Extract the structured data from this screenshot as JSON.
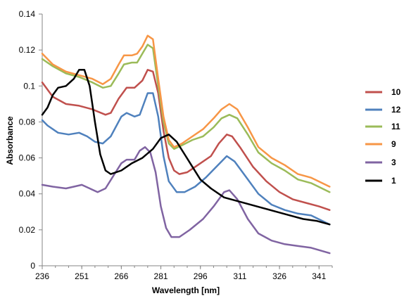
{
  "chart_data": {
    "type": "line",
    "xlabel": "Wavelength [nm]",
    "ylabel": "Absorbance",
    "xlim": [
      236,
      346
    ],
    "ylim": [
      0,
      0.14
    ],
    "x_ticks": [
      236,
      251,
      266,
      281,
      296,
      311,
      326,
      341
    ],
    "y_ticks": [
      0,
      0.02,
      0.04,
      0.06,
      0.08,
      0.1,
      0.12,
      0.14
    ],
    "y_tick_labels": [
      "0",
      "0.02",
      "0.04",
      "0.06",
      "0.08",
      "0.1",
      "0.12",
      "0.14"
    ],
    "grid": false,
    "legend_position": "right",
    "series": [
      {
        "name": "10",
        "color": "#c0504d",
        "points": [
          [
            236,
            0.102
          ],
          [
            240,
            0.094
          ],
          [
            245,
            0.09
          ],
          [
            250,
            0.089
          ],
          [
            255,
            0.087
          ],
          [
            260,
            0.084
          ],
          [
            262,
            0.085
          ],
          [
            265,
            0.093
          ],
          [
            268,
            0.099
          ],
          [
            271,
            0.099
          ],
          [
            274,
            0.103
          ],
          [
            276,
            0.109
          ],
          [
            278,
            0.108
          ],
          [
            280,
            0.096
          ],
          [
            282,
            0.075
          ],
          [
            284,
            0.06
          ],
          [
            286,
            0.053
          ],
          [
            288,
            0.051
          ],
          [
            291,
            0.052
          ],
          [
            295,
            0.056
          ],
          [
            300,
            0.061
          ],
          [
            303,
            0.068
          ],
          [
            306,
            0.073
          ],
          [
            308,
            0.072
          ],
          [
            311,
            0.066
          ],
          [
            316,
            0.055
          ],
          [
            321,
            0.047
          ],
          [
            326,
            0.041
          ],
          [
            331,
            0.037
          ],
          [
            336,
            0.035
          ],
          [
            341,
            0.033
          ],
          [
            345,
            0.031
          ]
        ]
      },
      {
        "name": "12",
        "color": "#4f81bd",
        "points": [
          [
            236,
            0.081
          ],
          [
            238,
            0.078
          ],
          [
            242,
            0.074
          ],
          [
            246,
            0.073
          ],
          [
            250,
            0.074
          ],
          [
            253,
            0.072
          ],
          [
            256,
            0.069
          ],
          [
            259,
            0.068
          ],
          [
            262,
            0.072
          ],
          [
            266,
            0.083
          ],
          [
            268,
            0.085
          ],
          [
            271,
            0.083
          ],
          [
            273,
            0.084
          ],
          [
            276,
            0.096
          ],
          [
            278,
            0.096
          ],
          [
            280,
            0.083
          ],
          [
            282,
            0.061
          ],
          [
            284,
            0.047
          ],
          [
            287,
            0.041
          ],
          [
            290,
            0.041
          ],
          [
            294,
            0.044
          ],
          [
            298,
            0.049
          ],
          [
            302,
            0.055
          ],
          [
            306,
            0.061
          ],
          [
            309,
            0.058
          ],
          [
            313,
            0.05
          ],
          [
            318,
            0.04
          ],
          [
            323,
            0.034
          ],
          [
            328,
            0.031
          ],
          [
            333,
            0.029
          ],
          [
            338,
            0.028
          ],
          [
            345,
            0.023
          ]
        ]
      },
      {
        "name": "11",
        "color": "#9bbb59",
        "points": [
          [
            236,
            0.115
          ],
          [
            240,
            0.111
          ],
          [
            245,
            0.107
          ],
          [
            250,
            0.105
          ],
          [
            255,
            0.102
          ],
          [
            259,
            0.099
          ],
          [
            262,
            0.1
          ],
          [
            265,
            0.107
          ],
          [
            267,
            0.112
          ],
          [
            270,
            0.113
          ],
          [
            272,
            0.113
          ],
          [
            274,
            0.118
          ],
          [
            276,
            0.123
          ],
          [
            278,
            0.121
          ],
          [
            280,
            0.1
          ],
          [
            282,
            0.08
          ],
          [
            284,
            0.068
          ],
          [
            286,
            0.065
          ],
          [
            289,
            0.067
          ],
          [
            293,
            0.07
          ],
          [
            297,
            0.072
          ],
          [
            301,
            0.077
          ],
          [
            304,
            0.082
          ],
          [
            307,
            0.084
          ],
          [
            310,
            0.082
          ],
          [
            314,
            0.073
          ],
          [
            318,
            0.063
          ],
          [
            323,
            0.057
          ],
          [
            328,
            0.053
          ],
          [
            333,
            0.048
          ],
          [
            338,
            0.046
          ],
          [
            345,
            0.041
          ]
        ]
      },
      {
        "name": "9",
        "color": "#f79646",
        "points": [
          [
            236,
            0.118
          ],
          [
            240,
            0.112
          ],
          [
            245,
            0.108
          ],
          [
            250,
            0.106
          ],
          [
            255,
            0.104
          ],
          [
            259,
            0.101
          ],
          [
            262,
            0.104
          ],
          [
            265,
            0.112
          ],
          [
            267,
            0.117
          ],
          [
            270,
            0.117
          ],
          [
            272,
            0.118
          ],
          [
            274,
            0.122
          ],
          [
            276,
            0.128
          ],
          [
            278,
            0.126
          ],
          [
            280,
            0.104
          ],
          [
            282,
            0.083
          ],
          [
            284,
            0.07
          ],
          [
            286,
            0.066
          ],
          [
            289,
            0.068
          ],
          [
            293,
            0.072
          ],
          [
            297,
            0.076
          ],
          [
            301,
            0.082
          ],
          [
            304,
            0.087
          ],
          [
            307,
            0.09
          ],
          [
            310,
            0.087
          ],
          [
            314,
            0.077
          ],
          [
            318,
            0.066
          ],
          [
            323,
            0.06
          ],
          [
            328,
            0.056
          ],
          [
            333,
            0.051
          ],
          [
            338,
            0.049
          ],
          [
            345,
            0.044
          ]
        ]
      },
      {
        "name": "3",
        "color": "#8064a2",
        "points": [
          [
            236,
            0.045
          ],
          [
            240,
            0.044
          ],
          [
            245,
            0.043
          ],
          [
            248,
            0.044
          ],
          [
            251,
            0.045
          ],
          [
            254,
            0.043
          ],
          [
            257,
            0.041
          ],
          [
            260,
            0.043
          ],
          [
            263,
            0.05
          ],
          [
            266,
            0.057
          ],
          [
            268,
            0.059
          ],
          [
            271,
            0.059
          ],
          [
            273,
            0.064
          ],
          [
            275,
            0.066
          ],
          [
            277,
            0.063
          ],
          [
            279,
            0.052
          ],
          [
            281,
            0.033
          ],
          [
            283,
            0.021
          ],
          [
            285,
            0.016
          ],
          [
            288,
            0.016
          ],
          [
            292,
            0.02
          ],
          [
            297,
            0.026
          ],
          [
            301,
            0.033
          ],
          [
            305,
            0.041
          ],
          [
            307,
            0.042
          ],
          [
            310,
            0.037
          ],
          [
            314,
            0.026
          ],
          [
            318,
            0.018
          ],
          [
            323,
            0.014
          ],
          [
            328,
            0.012
          ],
          [
            333,
            0.011
          ],
          [
            338,
            0.01
          ],
          [
            345,
            0.007
          ]
        ]
      },
      {
        "name": "1",
        "color": "#000000",
        "points": [
          [
            236,
            0.084
          ],
          [
            238,
            0.088
          ],
          [
            240,
            0.095
          ],
          [
            242,
            0.099
          ],
          [
            245,
            0.1
          ],
          [
            248,
            0.104
          ],
          [
            250,
            0.109
          ],
          [
            252,
            0.109
          ],
          [
            254,
            0.1
          ],
          [
            256,
            0.08
          ],
          [
            258,
            0.062
          ],
          [
            260,
            0.053
          ],
          [
            262,
            0.051
          ],
          [
            266,
            0.053
          ],
          [
            270,
            0.057
          ],
          [
            274,
            0.06
          ],
          [
            278,
            0.065
          ],
          [
            281,
            0.071
          ],
          [
            284,
            0.073
          ],
          [
            287,
            0.069
          ],
          [
            290,
            0.062
          ],
          [
            293,
            0.055
          ],
          [
            296,
            0.048
          ],
          [
            300,
            0.043
          ],
          [
            305,
            0.038
          ],
          [
            310,
            0.036
          ],
          [
            315,
            0.034
          ],
          [
            320,
            0.032
          ],
          [
            325,
            0.03
          ],
          [
            330,
            0.028
          ],
          [
            335,
            0.026
          ],
          [
            340,
            0.025
          ],
          [
            345,
            0.023
          ]
        ]
      }
    ]
  }
}
